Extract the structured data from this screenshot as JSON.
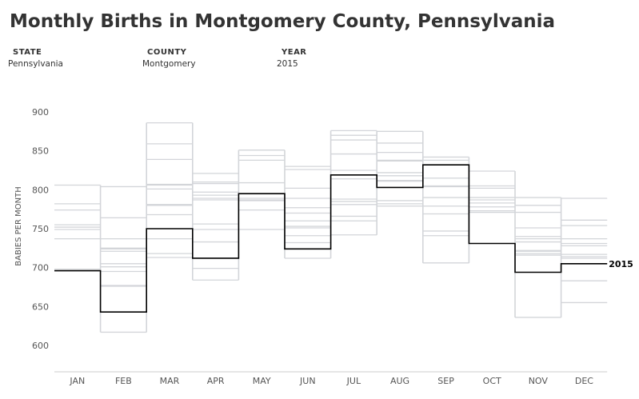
{
  "title": "Monthly Births in Montgomery County, Pennsylvania",
  "filters": [
    {
      "label": "STATE",
      "value": "Pennsylvania"
    },
    {
      "label": "COUNTY",
      "value": "Montgomery"
    },
    {
      "label": "YEAR",
      "value": "2015"
    }
  ],
  "chart_data": {
    "type": "line",
    "step": true,
    "title": "Monthly Births in Montgomery County, Pennsylvania",
    "ylabel": "BABIES PER MONTH",
    "xlabel": "",
    "categories": [
      "JAN",
      "FEB",
      "MAR",
      "APR",
      "MAY",
      "JUN",
      "JUL",
      "AUG",
      "SEP",
      "OCT",
      "NOV",
      "DEC"
    ],
    "ylim": [
      566,
      905
    ],
    "yticks": [
      600,
      650,
      700,
      750,
      800,
      850,
      900
    ],
    "grid": false,
    "highlight_color": "#000000",
    "background_series_color": "#d3d5d9",
    "highlight": {
      "name": "2015",
      "values": [
        696,
        643,
        750,
        712,
        795,
        724,
        819,
        803,
        832,
        731,
        694,
        705
      ]
    },
    "other_years_by_month": [
      [
        806,
        782,
        774,
        755,
        752,
        749,
        737,
        698
      ],
      [
        804,
        764,
        737,
        725,
        724,
        721,
        705,
        701,
        695,
        677,
        676,
        617
      ],
      [
        886,
        859,
        839,
        807,
        806,
        801,
        781,
        780,
        768,
        737,
        718,
        713
      ],
      [
        821,
        810,
        808,
        797,
        793,
        789,
        787,
        756,
        749,
        733,
        699,
        684
      ],
      [
        851,
        844,
        838,
        809,
        789,
        787,
        786,
        774,
        749
      ],
      [
        830,
        826,
        802,
        789,
        777,
        770,
        760,
        753,
        751,
        741,
        732,
        712
      ],
      [
        876,
        870,
        864,
        846,
        825,
        814,
        788,
        785,
        781,
        766,
        760,
        742
      ],
      [
        875,
        860,
        848,
        838,
        837,
        822,
        818,
        812,
        811,
        786,
        782,
        779
      ],
      [
        842,
        838,
        815,
        805,
        804,
        790,
        779,
        769,
        747,
        741,
        706
      ],
      [
        824,
        805,
        802,
        790,
        787,
        783,
        778,
        773,
        771
      ],
      [
        790,
        780,
        771,
        751,
        740,
        737,
        733,
        722,
        721,
        718,
        716,
        636
      ],
      [
        789,
        761,
        754,
        737,
        731,
        728,
        717,
        714,
        712,
        683,
        655
      ]
    ]
  }
}
